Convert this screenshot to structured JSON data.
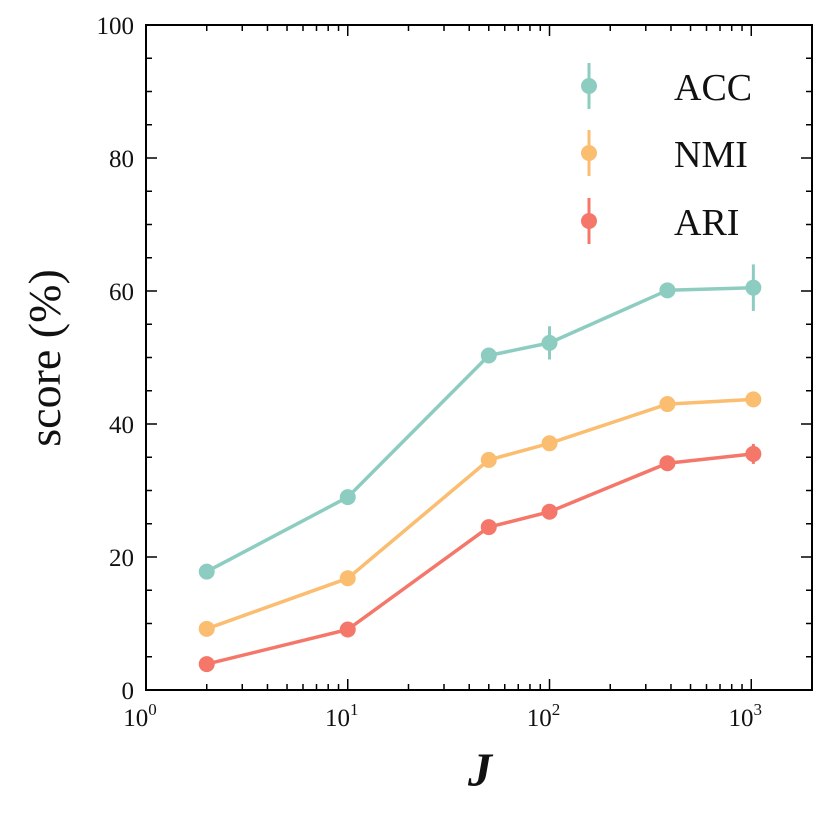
{
  "chart_data": {
    "type": "line",
    "title": "",
    "xlabel": "J",
    "ylabel": "score (%)",
    "xscale": "log",
    "xlim": [
      1,
      2000
    ],
    "ylim": [
      0,
      100
    ],
    "x_ticks": [
      {
        "value": 1,
        "base": "10",
        "exp": "0"
      },
      {
        "value": 10,
        "base": "10",
        "exp": "1"
      },
      {
        "value": 100,
        "base": "10",
        "exp": "2"
      },
      {
        "value": 1000,
        "base": "10",
        "exp": "3"
      }
    ],
    "y_ticks": [
      0,
      20,
      40,
      60,
      80,
      100
    ],
    "y_tick_labels": [
      "0",
      "20",
      "40",
      "60",
      "80",
      "100"
    ],
    "legend_position": "top-right",
    "x": [
      2,
      10,
      50,
      100,
      384,
      1024
    ],
    "series": [
      {
        "name": "ACC",
        "color": "#8dcdc1",
        "values": [
          17.8,
          29.0,
          50.3,
          52.2,
          60.1,
          60.5
        ],
        "errors": [
          0.5,
          0.6,
          0.6,
          2.5,
          0.6,
          3.5
        ]
      },
      {
        "name": "NMI",
        "color": "#fbbd6f",
        "values": [
          9.2,
          16.8,
          34.6,
          37.1,
          43.0,
          43.7
        ],
        "errors": [
          0.4,
          0.5,
          0.6,
          0.6,
          0.5,
          0.6
        ]
      },
      {
        "name": "ARI",
        "color": "#f4776a",
        "values": [
          3.9,
          9.1,
          24.5,
          26.8,
          34.1,
          35.5
        ],
        "errors": [
          0.4,
          0.5,
          0.6,
          0.6,
          0.6,
          1.5
        ]
      }
    ]
  }
}
